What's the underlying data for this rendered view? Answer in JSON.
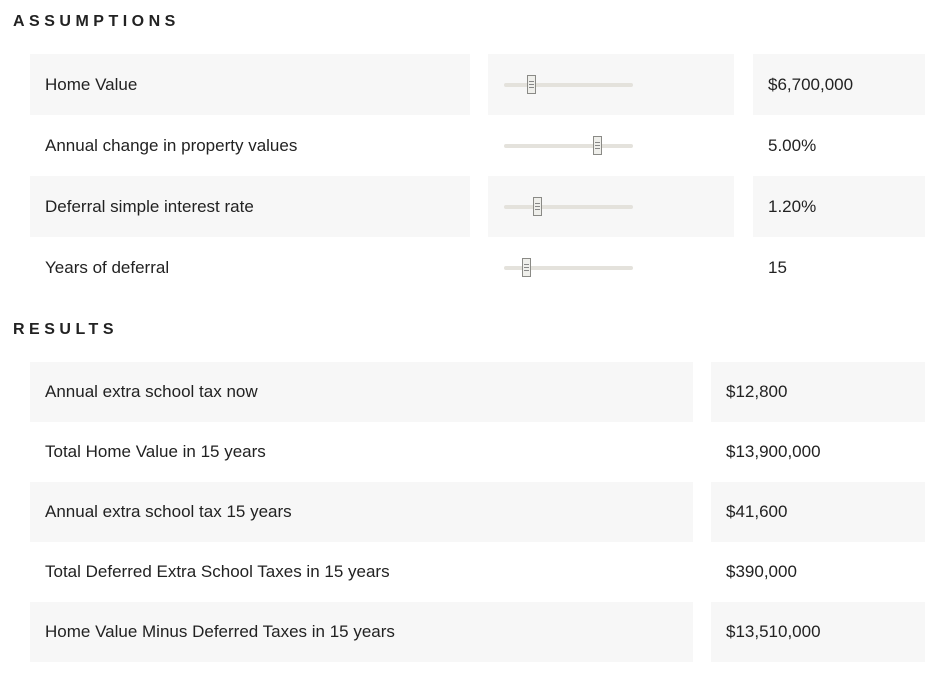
{
  "assumptions": {
    "heading": "ASSUMPTIONS",
    "rows": [
      {
        "label": "Home Value",
        "value": "$6,700,000",
        "slider": 0.22
      },
      {
        "label": "Annual change in property values",
        "value": "5.00%",
        "slider": 0.73
      },
      {
        "label": "Deferral simple interest rate",
        "value": "1.20%",
        "slider": 0.26
      },
      {
        "label": "Years of deferral",
        "value": "15",
        "slider": 0.18
      }
    ]
  },
  "results": {
    "heading": "RESULTS",
    "rows": [
      {
        "label": "Annual extra school tax now",
        "value": "$12,800"
      },
      {
        "label": "Total Home Value in 15 years",
        "value": "$13,900,000"
      },
      {
        "label": "Annual extra school tax 15 years",
        "value": "$41,600"
      },
      {
        "label": "Total Deferred Extra School Taxes in 15 years",
        "value": "$390,000"
      },
      {
        "label": "Home Value Minus Deferred Taxes in 15 years",
        "value": "$13,510,000"
      }
    ]
  }
}
